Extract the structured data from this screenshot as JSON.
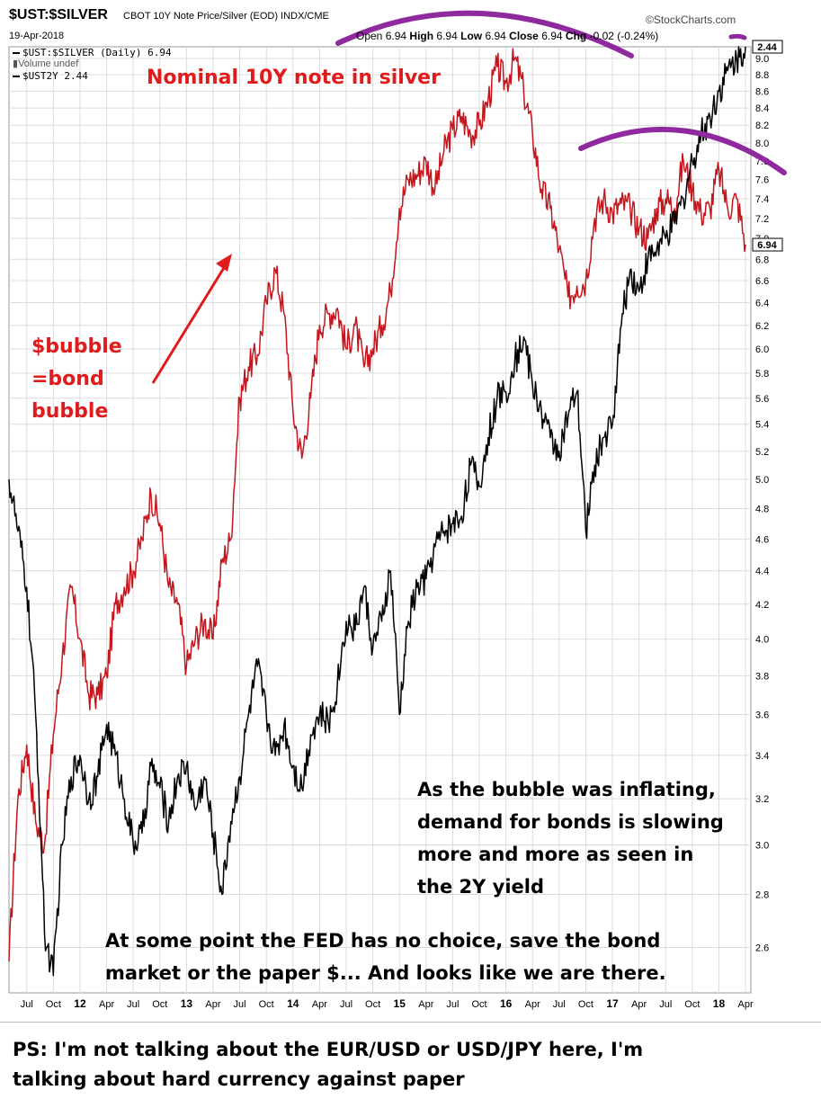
{
  "header": {
    "symbol": "$UST:$SILVER",
    "description": "CBOT 10Y Note Price/Silver (EOD) INDX/CME",
    "date": "19-Apr-2018",
    "brand": "©StockCharts.com",
    "ohlc": {
      "open_label": "Open",
      "open": "6.94",
      "high_label": "High",
      "high": "6.94",
      "low_label": "Low",
      "low": "6.94",
      "close_label": "Close",
      "close": "6.94",
      "chg_label": "Chg",
      "chg": "-0.02 (-0.24%)"
    }
  },
  "legend": {
    "series1": "$UST:$SILVER (Daily) 6.94",
    "volume": "Volume undef",
    "series2": "$UST2Y 2.44"
  },
  "annotations": {
    "nominal": "Nominal 10Y note in silver",
    "bubble_lines": [
      "$bubble",
      "=bond",
      "bubble"
    ],
    "inflating_lines": [
      "As the bubble was inflating,",
      "demand for bonds is slowing",
      "more and more as seen in",
      "the 2Y yield"
    ],
    "fed_lines": [
      "At some point the FED has no choice, save the bond",
      "market or the paper $... And looks like we are there."
    ],
    "ps_lines": [
      "PS: I'm not talking about the EUR/USD or USD/JPY here, I'm",
      "talking about hard currency against paper"
    ]
  },
  "colors": {
    "ratio_series": "#c4161c",
    "yield_series": "#000000",
    "annotation_red": "#e01b1b",
    "arc": "#8e2a9e",
    "grid": "#dcdcdc"
  },
  "chart_data": {
    "type": "line",
    "title": "$UST:$SILVER",
    "x_ticks": [
      "Jul",
      "Oct",
      "12",
      "Apr",
      "Jul",
      "Oct",
      "13",
      "Apr",
      "Jul",
      "Oct",
      "14",
      "Apr",
      "Jul",
      "Oct",
      "15",
      "Apr",
      "Jul",
      "Oct",
      "16",
      "Apr",
      "Jul",
      "Oct",
      "17",
      "Apr",
      "Jul",
      "Oct",
      "18",
      "Apr"
    ],
    "x_range": [
      "2011-05",
      "2018-04-19"
    ],
    "ylim": [
      2.44,
      9.15
    ],
    "y_scale": "log",
    "y_ticks": [
      2.6,
      2.8,
      3.0,
      3.2,
      3.4,
      3.6,
      3.8,
      4.0,
      4.2,
      4.4,
      4.6,
      4.8,
      5.0,
      5.2,
      5.4,
      5.6,
      5.8,
      6.0,
      6.2,
      6.4,
      6.6,
      6.8,
      7.0,
      7.2,
      7.4,
      7.6,
      7.8,
      8.0,
      8.2,
      8.4,
      8.6,
      8.8,
      9.0
    ],
    "last_value_badges": [
      "2.44",
      "6.94"
    ],
    "grid": true,
    "series": [
      {
        "name": "$UST:$SILVER (Daily) 6.94",
        "color": "#c4161c",
        "values": [
          [
            "2011-05",
            2.55
          ],
          [
            "2011-06",
            3.2
          ],
          [
            "2011-07",
            3.45
          ],
          [
            "2011-08",
            3.1
          ],
          [
            "2011-09",
            3.0
          ],
          [
            "2011-10",
            3.5
          ],
          [
            "2011-11",
            3.9
          ],
          [
            "2011-12",
            4.3
          ],
          [
            "2012-01",
            4.0
          ],
          [
            "2012-02",
            3.7
          ],
          [
            "2012-03",
            3.7
          ],
          [
            "2012-04",
            3.8
          ],
          [
            "2012-05",
            4.2
          ],
          [
            "2012-06",
            4.3
          ],
          [
            "2012-07",
            4.4
          ],
          [
            "2012-08",
            4.6
          ],
          [
            "2012-09",
            4.9
          ],
          [
            "2012-10",
            4.7
          ],
          [
            "2012-11",
            4.3
          ],
          [
            "2012-12",
            4.2
          ],
          [
            "2013-01",
            3.85
          ],
          [
            "2013-02",
            4.0
          ],
          [
            "2013-03",
            4.1
          ],
          [
            "2013-04",
            4.0
          ],
          [
            "2013-05",
            4.45
          ],
          [
            "2013-06",
            4.6
          ],
          [
            "2013-07",
            5.6
          ],
          [
            "2013-08",
            5.85
          ],
          [
            "2013-09",
            5.95
          ],
          [
            "2013-10",
            6.4
          ],
          [
            "2013-11",
            6.7
          ],
          [
            "2013-12",
            6.3
          ],
          [
            "2014-01",
            5.5
          ],
          [
            "2014-02",
            5.15
          ],
          [
            "2014-03",
            5.6
          ],
          [
            "2014-04",
            6.2
          ],
          [
            "2014-05",
            6.3
          ],
          [
            "2014-06",
            6.35
          ],
          [
            "2014-07",
            6.0
          ],
          [
            "2014-08",
            6.2
          ],
          [
            "2014-09",
            5.85
          ],
          [
            "2014-10",
            6.0
          ],
          [
            "2014-11",
            6.2
          ],
          [
            "2014-12",
            6.5
          ],
          [
            "2015-01",
            7.3
          ],
          [
            "2015-02",
            7.6
          ],
          [
            "2015-03",
            7.65
          ],
          [
            "2015-04",
            7.8
          ],
          [
            "2015-05",
            7.5
          ],
          [
            "2015-06",
            7.9
          ],
          [
            "2015-07",
            8.15
          ],
          [
            "2015-08",
            8.3
          ],
          [
            "2015-09",
            8.1
          ],
          [
            "2015-10",
            8.2
          ],
          [
            "2015-11",
            8.5
          ],
          [
            "2015-12",
            8.9
          ],
          [
            "2016-01",
            8.7
          ],
          [
            "2016-02",
            9.0
          ],
          [
            "2016-03",
            8.6
          ],
          [
            "2016-04",
            8.1
          ],
          [
            "2016-05",
            7.5
          ],
          [
            "2016-06",
            7.3
          ],
          [
            "2016-07",
            6.9
          ],
          [
            "2016-08",
            6.45
          ],
          [
            "2016-09",
            6.55
          ],
          [
            "2016-10",
            6.6
          ],
          [
            "2016-11",
            7.2
          ],
          [
            "2016-12",
            7.4
          ],
          [
            "2017-01",
            7.25
          ],
          [
            "2017-02",
            7.35
          ],
          [
            "2017-03",
            7.3
          ],
          [
            "2017-04",
            7.1
          ],
          [
            "2017-05",
            7.0
          ],
          [
            "2017-06",
            7.3
          ],
          [
            "2017-07",
            7.4
          ],
          [
            "2017-08",
            7.3
          ],
          [
            "2017-09",
            7.8
          ],
          [
            "2017-10",
            7.5
          ],
          [
            "2017-11",
            7.25
          ],
          [
            "2017-12",
            7.3
          ],
          [
            "2018-01",
            7.7
          ],
          [
            "2018-02",
            7.3
          ],
          [
            "2018-03",
            7.4
          ],
          [
            "2018-04",
            6.94
          ]
        ]
      },
      {
        "name": "$UST2Y 2.44",
        "color": "#000000",
        "values": [
          [
            "2011-05",
            5.0
          ],
          [
            "2011-06",
            4.65
          ],
          [
            "2011-07",
            4.3
          ],
          [
            "2011-08",
            3.6
          ],
          [
            "2011-09",
            2.65
          ],
          [
            "2011-10",
            2.5
          ],
          [
            "2011-11",
            3.0
          ],
          [
            "2011-12",
            3.3
          ],
          [
            "2012-01",
            3.4
          ],
          [
            "2012-02",
            3.2
          ],
          [
            "2012-03",
            3.3
          ],
          [
            "2012-04",
            3.55
          ],
          [
            "2012-05",
            3.4
          ],
          [
            "2012-06",
            3.2
          ],
          [
            "2012-07",
            3.0
          ],
          [
            "2012-08",
            3.05
          ],
          [
            "2012-09",
            3.35
          ],
          [
            "2012-10",
            3.25
          ],
          [
            "2012-11",
            3.1
          ],
          [
            "2012-12",
            3.3
          ],
          [
            "2013-01",
            3.35
          ],
          [
            "2013-02",
            3.15
          ],
          [
            "2013-03",
            3.3
          ],
          [
            "2013-04",
            3.05
          ],
          [
            "2013-05",
            2.8
          ],
          [
            "2013-06",
            3.1
          ],
          [
            "2013-07",
            3.3
          ],
          [
            "2013-08",
            3.6
          ],
          [
            "2013-09",
            3.85
          ],
          [
            "2013-10",
            3.6
          ],
          [
            "2013-11",
            3.4
          ],
          [
            "2013-12",
            3.55
          ],
          [
            "2014-01",
            3.35
          ],
          [
            "2014-02",
            3.25
          ],
          [
            "2014-03",
            3.5
          ],
          [
            "2014-04",
            3.6
          ],
          [
            "2014-05",
            3.55
          ],
          [
            "2014-06",
            3.75
          ],
          [
            "2014-07",
            4.1
          ],
          [
            "2014-08",
            4.05
          ],
          [
            "2014-09",
            4.3
          ],
          [
            "2014-10",
            3.95
          ],
          [
            "2014-11",
            4.1
          ],
          [
            "2014-12",
            4.4
          ],
          [
            "2015-01",
            3.6
          ],
          [
            "2015-02",
            4.1
          ],
          [
            "2015-03",
            4.3
          ],
          [
            "2015-04",
            4.35
          ],
          [
            "2015-05",
            4.55
          ],
          [
            "2015-06",
            4.65
          ],
          [
            "2015-07",
            4.7
          ],
          [
            "2015-08",
            4.75
          ],
          [
            "2015-09",
            5.1
          ],
          [
            "2015-10",
            4.95
          ],
          [
            "2015-11",
            5.3
          ],
          [
            "2015-12",
            5.6
          ],
          [
            "2016-01",
            5.65
          ],
          [
            "2016-02",
            5.9
          ],
          [
            "2016-03",
            6.1
          ],
          [
            "2016-04",
            5.7
          ],
          [
            "2016-05",
            5.5
          ],
          [
            "2016-06",
            5.3
          ],
          [
            "2016-07",
            5.2
          ],
          [
            "2016-08",
            5.45
          ],
          [
            "2016-09",
            5.65
          ],
          [
            "2016-10",
            4.65
          ],
          [
            "2016-11",
            5.1
          ],
          [
            "2016-12",
            5.3
          ],
          [
            "2017-01",
            5.4
          ],
          [
            "2017-02",
            6.2
          ],
          [
            "2017-03",
            6.7
          ],
          [
            "2017-04",
            6.5
          ],
          [
            "2017-05",
            6.8
          ],
          [
            "2017-06",
            6.9
          ],
          [
            "2017-07",
            7.0
          ],
          [
            "2017-08",
            7.15
          ],
          [
            "2017-09",
            7.4
          ],
          [
            "2017-10",
            7.8
          ],
          [
            "2017-11",
            8.1
          ],
          [
            "2017-12",
            8.3
          ],
          [
            "2018-01",
            8.6
          ],
          [
            "2018-02",
            8.85
          ],
          [
            "2018-03",
            9.0
          ],
          [
            "2018-04",
            9.15
          ]
        ]
      }
    ]
  }
}
